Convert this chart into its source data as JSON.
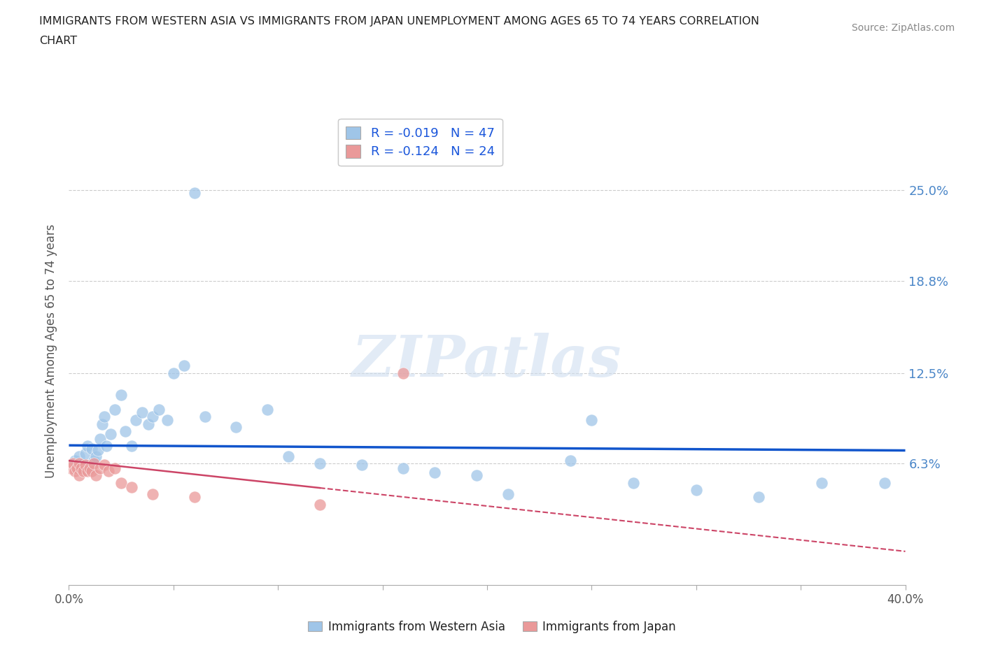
{
  "title_line1": "IMMIGRANTS FROM WESTERN ASIA VS IMMIGRANTS FROM JAPAN UNEMPLOYMENT AMONG AGES 65 TO 74 YEARS CORRELATION",
  "title_line2": "CHART",
  "source_text": "Source: ZipAtlas.com",
  "ylabel": "Unemployment Among Ages 65 to 74 years",
  "xlim": [
    0.0,
    0.4
  ],
  "ylim": [
    -0.02,
    0.3
  ],
  "yticks": [
    0.063,
    0.125,
    0.188,
    0.25
  ],
  "ytick_labels": [
    "6.3%",
    "12.5%",
    "18.8%",
    "25.0%"
  ],
  "xticks": [
    0.0,
    0.05,
    0.1,
    0.15,
    0.2,
    0.25,
    0.3,
    0.35,
    0.4
  ],
  "xtick_labels": [
    "0.0%",
    "",
    "",
    "",
    "",
    "",
    "",
    "",
    "40.0%"
  ],
  "watermark": "ZIPatlas",
  "legend_r1": "R = -0.019   N = 47",
  "legend_r2": "R = -0.124   N = 24",
  "blue_color": "#9fc5e8",
  "pink_color": "#ea9999",
  "line_blue": "#1155cc",
  "line_pink": "#cc4466",
  "wa_x": [
    0.003,
    0.004,
    0.005,
    0.006,
    0.007,
    0.008,
    0.009,
    0.01,
    0.011,
    0.012,
    0.013,
    0.014,
    0.015,
    0.016,
    0.017,
    0.018,
    0.02,
    0.022,
    0.025,
    0.027,
    0.03,
    0.032,
    0.035,
    0.038,
    0.04,
    0.043,
    0.047,
    0.05,
    0.055,
    0.065,
    0.08,
    0.095,
    0.105,
    0.12,
    0.14,
    0.16,
    0.175,
    0.195,
    0.21,
    0.24,
    0.27,
    0.3,
    0.33,
    0.36,
    0.39,
    0.25,
    0.06
  ],
  "wa_y": [
    0.065,
    0.062,
    0.068,
    0.06,
    0.063,
    0.07,
    0.075,
    0.06,
    0.073,
    0.065,
    0.068,
    0.072,
    0.08,
    0.09,
    0.095,
    0.075,
    0.083,
    0.1,
    0.11,
    0.085,
    0.075,
    0.093,
    0.098,
    0.09,
    0.095,
    0.1,
    0.093,
    0.125,
    0.13,
    0.095,
    0.088,
    0.1,
    0.068,
    0.063,
    0.062,
    0.06,
    0.057,
    0.055,
    0.042,
    0.065,
    0.05,
    0.045,
    0.04,
    0.05,
    0.05,
    0.093,
    0.248
  ],
  "jp_x": [
    0.001,
    0.002,
    0.003,
    0.004,
    0.005,
    0.005,
    0.006,
    0.007,
    0.008,
    0.009,
    0.01,
    0.011,
    0.012,
    0.013,
    0.015,
    0.017,
    0.019,
    0.022,
    0.025,
    0.03,
    0.04,
    0.06,
    0.12,
    0.16
  ],
  "jp_y": [
    0.06,
    0.063,
    0.058,
    0.06,
    0.055,
    0.063,
    0.06,
    0.058,
    0.062,
    0.058,
    0.06,
    0.058,
    0.063,
    0.055,
    0.06,
    0.062,
    0.058,
    0.06,
    0.05,
    0.047,
    0.042,
    0.04,
    0.035,
    0.125
  ],
  "trend_wa_x0": 0.0,
  "trend_wa_x1": 0.4,
  "trend_wa_y0": 0.0755,
  "trend_wa_y1": 0.072,
  "trend_jp_x0": 0.0,
  "trend_jp_x1": 0.4,
  "trend_jp_y0": 0.065,
  "trend_jp_y1": 0.003
}
